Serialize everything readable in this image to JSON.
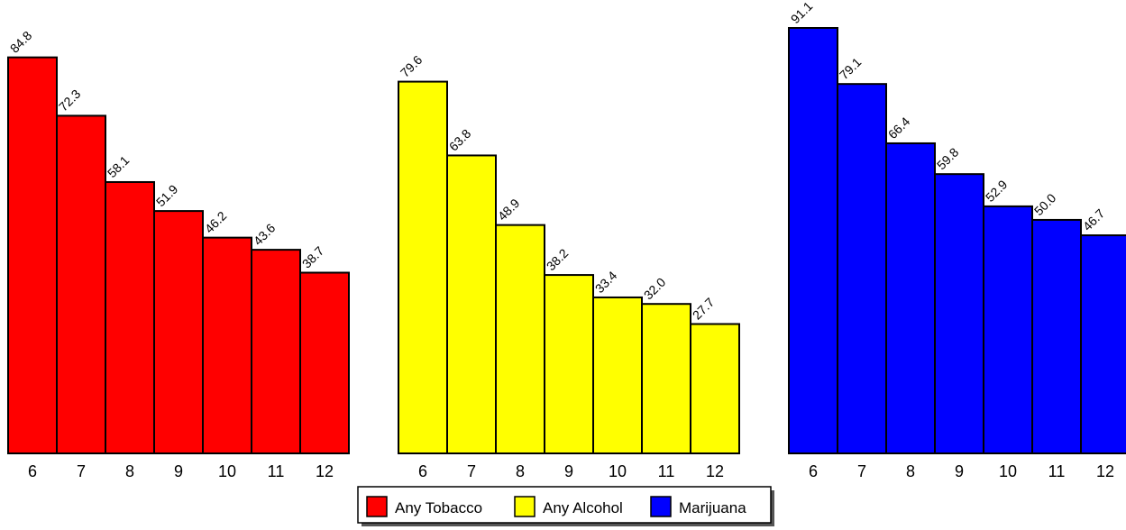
{
  "chart_data": {
    "type": "bar",
    "title": "",
    "xlabel": "",
    "ylabel": "",
    "ylim": [
      0,
      95
    ],
    "grid": false,
    "legend_position": "bottom-center",
    "categories": [
      "6",
      "7",
      "8",
      "9",
      "10",
      "11",
      "12"
    ],
    "series": [
      {
        "name": "Any Tobacco",
        "color": "#ff0000",
        "values": [
          84.8,
          72.3,
          58.1,
          51.9,
          46.2,
          43.6,
          38.7
        ],
        "labels": [
          "84.8",
          "72.3",
          "58.1",
          "51.9",
          "46.2",
          "43.6",
          "38.7"
        ]
      },
      {
        "name": "Any Alcohol",
        "color": "#ffff00",
        "values": [
          79.6,
          63.8,
          48.9,
          38.2,
          33.4,
          32.0,
          27.7
        ],
        "labels": [
          "79.6",
          "63.8",
          "48.9",
          "38.2",
          "33.4",
          "32.0",
          "27.7"
        ]
      },
      {
        "name": "Marijuana",
        "color": "#0000ff",
        "values": [
          91.1,
          79.1,
          66.4,
          59.8,
          52.9,
          50.0,
          46.7
        ],
        "labels": [
          "91.1",
          "79.1",
          "66.4",
          "59.8",
          "52.9",
          "50.0",
          "46.7"
        ]
      }
    ]
  }
}
